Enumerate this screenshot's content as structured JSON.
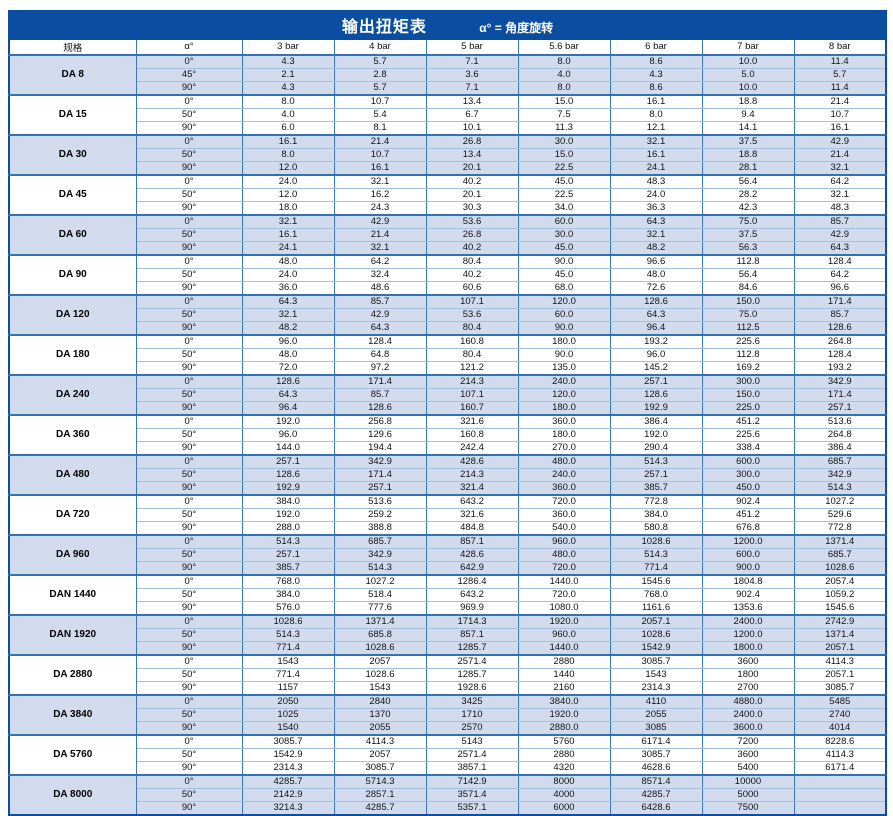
{
  "title": "输出扭矩表",
  "subtitle": "α° = 角度旋转",
  "colors": {
    "header_bg": "#0b4da0",
    "header_text": "#ffffff",
    "group_shade": "#d2dbee",
    "grid_blue": "#3b79bd",
    "row_line": "#a3c0e0",
    "group_separator": "#2e74b5"
  },
  "columns": [
    "规格",
    "α°",
    "3 bar",
    "4 bar",
    "5 bar",
    "5.6 bar",
    "6 bar",
    "7 bar",
    "8 bar"
  ],
  "groups": [
    {
      "model": "DA 8",
      "rows": [
        {
          "angle": "0°",
          "values": [
            "4.3",
            "5.7",
            "7.1",
            "8.0",
            "8.6",
            "10.0",
            "11.4"
          ]
        },
        {
          "angle": "45°",
          "values": [
            "2.1",
            "2.8",
            "3.6",
            "4.0",
            "4.3",
            "5.0",
            "5.7"
          ]
        },
        {
          "angle": "90°",
          "values": [
            "4.3",
            "5.7",
            "7.1",
            "8.0",
            "8.6",
            "10.0",
            "11.4"
          ]
        }
      ]
    },
    {
      "model": "DA 15",
      "rows": [
        {
          "angle": "0°",
          "values": [
            "8.0",
            "10.7",
            "13.4",
            "15.0",
            "16.1",
            "18.8",
            "21.4"
          ]
        },
        {
          "angle": "50°",
          "values": [
            "4.0",
            "5.4",
            "6.7",
            "7.5",
            "8.0",
            "9.4",
            "10.7"
          ]
        },
        {
          "angle": "90°",
          "values": [
            "6.0",
            "8.1",
            "10.1",
            "11.3",
            "12.1",
            "14.1",
            "16.1"
          ]
        }
      ]
    },
    {
      "model": "DA 30",
      "rows": [
        {
          "angle": "0°",
          "values": [
            "16.1",
            "21.4",
            "26.8",
            "30.0",
            "32.1",
            "37.5",
            "42.9"
          ]
        },
        {
          "angle": "50°",
          "values": [
            "8.0",
            "10.7",
            "13.4",
            "15.0",
            "16.1",
            "18.8",
            "21.4"
          ]
        },
        {
          "angle": "90°",
          "values": [
            "12.0",
            "16.1",
            "20.1",
            "22.5",
            "24.1",
            "28.1",
            "32.1"
          ]
        }
      ]
    },
    {
      "model": "DA 45",
      "rows": [
        {
          "angle": "0°",
          "values": [
            "24.0",
            "32.1",
            "40.2",
            "45.0",
            "48.3",
            "56.4",
            "64.2"
          ]
        },
        {
          "angle": "50°",
          "values": [
            "12.0",
            "16.2",
            "20.1",
            "22.5",
            "24.0",
            "28.2",
            "32.1"
          ]
        },
        {
          "angle": "90°",
          "values": [
            "18.0",
            "24.3",
            "30.3",
            "34.0",
            "36.3",
            "42.3",
            "48.3"
          ]
        }
      ]
    },
    {
      "model": "DA 60",
      "rows": [
        {
          "angle": "0°",
          "values": [
            "32.1",
            "42.9",
            "53.6",
            "60.0",
            "64.3",
            "75.0",
            "85.7"
          ]
        },
        {
          "angle": "50°",
          "values": [
            "16.1",
            "21.4",
            "26.8",
            "30.0",
            "32.1",
            "37.5",
            "42.9"
          ]
        },
        {
          "angle": "90°",
          "values": [
            "24.1",
            "32.1",
            "40.2",
            "45.0",
            "48.2",
            "56.3",
            "64.3"
          ]
        }
      ]
    },
    {
      "model": "DA 90",
      "rows": [
        {
          "angle": "0°",
          "values": [
            "48.0",
            "64.2",
            "80.4",
            "90.0",
            "96.6",
            "112.8",
            "128.4"
          ]
        },
        {
          "angle": "50°",
          "values": [
            "24.0",
            "32.4",
            "40.2",
            "45.0",
            "48.0",
            "56.4",
            "64.2"
          ]
        },
        {
          "angle": "90°",
          "values": [
            "36.0",
            "48.6",
            "60.6",
            "68.0",
            "72.6",
            "84.6",
            "96.6"
          ]
        }
      ]
    },
    {
      "model": "DA 120",
      "rows": [
        {
          "angle": "0°",
          "values": [
            "64.3",
            "85.7",
            "107.1",
            "120.0",
            "128.6",
            "150.0",
            "171.4"
          ]
        },
        {
          "angle": "50°",
          "values": [
            "32.1",
            "42.9",
            "53.6",
            "60.0",
            "64.3",
            "75.0",
            "85.7"
          ]
        },
        {
          "angle": "90°",
          "values": [
            "48.2",
            "64.3",
            "80.4",
            "90.0",
            "96.4",
            "112.5",
            "128.6"
          ]
        }
      ]
    },
    {
      "model": "DA 180",
      "rows": [
        {
          "angle": "0°",
          "values": [
            "96.0",
            "128.4",
            "160.8",
            "180.0",
            "193.2",
            "225.6",
            "264.8"
          ]
        },
        {
          "angle": "50°",
          "values": [
            "48.0",
            "64.8",
            "80.4",
            "90.0",
            "96.0",
            "112.8",
            "128.4"
          ]
        },
        {
          "angle": "90°",
          "values": [
            "72.0",
            "97.2",
            "121.2",
            "135.0",
            "145.2",
            "169.2",
            "193.2"
          ]
        }
      ]
    },
    {
      "model": "DA 240",
      "rows": [
        {
          "angle": "0°",
          "values": [
            "128.6",
            "171.4",
            "214.3",
            "240.0",
            "257.1",
            "300.0",
            "342.9"
          ]
        },
        {
          "angle": "50°",
          "values": [
            "64.3",
            "85.7",
            "107.1",
            "120.0",
            "128.6",
            "150.0",
            "171.4"
          ]
        },
        {
          "angle": "90°",
          "values": [
            "96.4",
            "128.6",
            "160.7",
            "180.0",
            "192.9",
            "225.0",
            "257.1"
          ]
        }
      ]
    },
    {
      "model": "DA 360",
      "rows": [
        {
          "angle": "0°",
          "values": [
            "192.0",
            "256.8",
            "321.6",
            "360.0",
            "386.4",
            "451.2",
            "513.6"
          ]
        },
        {
          "angle": "50°",
          "values": [
            "96.0",
            "129.6",
            "160.8",
            "180.0",
            "192.0",
            "225.6",
            "264.8"
          ]
        },
        {
          "angle": "90°",
          "values": [
            "144.0",
            "194.4",
            "242.4",
            "270.0",
            "290.4",
            "338.4",
            "386.4"
          ]
        }
      ]
    },
    {
      "model": "DA 480",
      "rows": [
        {
          "angle": "0°",
          "values": [
            "257.1",
            "342.9",
            "428.6",
            "480.0",
            "514.3",
            "600.0",
            "685.7"
          ]
        },
        {
          "angle": "50°",
          "values": [
            "128.6",
            "171.4",
            "214.3",
            "240.0",
            "257.1",
            "300.0",
            "342.9"
          ]
        },
        {
          "angle": "90°",
          "values": [
            "192.9",
            "257.1",
            "321.4",
            "360.0",
            "385.7",
            "450.0",
            "514.3"
          ]
        }
      ]
    },
    {
      "model": "DA 720",
      "rows": [
        {
          "angle": "0°",
          "values": [
            "384.0",
            "513.6",
            "643.2",
            "720.0",
            "772.8",
            "902.4",
            "1027.2"
          ]
        },
        {
          "angle": "50°",
          "values": [
            "192.0",
            "259.2",
            "321.6",
            "360.0",
            "384.0",
            "451.2",
            "529.6"
          ]
        },
        {
          "angle": "90°",
          "values": [
            "288.0",
            "388.8",
            "484.8",
            "540.0",
            "580.8",
            "676.8",
            "772.8"
          ]
        }
      ]
    },
    {
      "model": "DA 960",
      "rows": [
        {
          "angle": "0°",
          "values": [
            "514.3",
            "685.7",
            "857.1",
            "960.0",
            "1028.6",
            "1200.0",
            "1371.4"
          ]
        },
        {
          "angle": "50°",
          "values": [
            "257.1",
            "342.9",
            "428.6",
            "480.0",
            "514.3",
            "600.0",
            "685.7"
          ]
        },
        {
          "angle": "90°",
          "values": [
            "385.7",
            "514.3",
            "642.9",
            "720.0",
            "771.4",
            "900.0",
            "1028.6"
          ]
        }
      ]
    },
    {
      "model": "DAN 1440",
      "rows": [
        {
          "angle": "0°",
          "values": [
            "768.0",
            "1027.2",
            "1286.4",
            "1440.0",
            "1545.6",
            "1804.8",
            "2057.4"
          ]
        },
        {
          "angle": "50°",
          "values": [
            "384.0",
            "518.4",
            "643.2",
            "720.0",
            "768.0",
            "902.4",
            "1059.2"
          ]
        },
        {
          "angle": "90°",
          "values": [
            "576.0",
            "777.6",
            "969.9",
            "1080.0",
            "1161.6",
            "1353.6",
            "1545.6"
          ]
        }
      ]
    },
    {
      "model": "DAN 1920",
      "rows": [
        {
          "angle": "0°",
          "values": [
            "1028.6",
            "1371.4",
            "1714.3",
            "1920.0",
            "2057.1",
            "2400.0",
            "2742.9"
          ]
        },
        {
          "angle": "50°",
          "values": [
            "514.3",
            "685.8",
            "857.1",
            "960.0",
            "1028.6",
            "1200.0",
            "1371.4"
          ]
        },
        {
          "angle": "90°",
          "values": [
            "771.4",
            "1028.6",
            "1285.7",
            "1440.0",
            "1542.9",
            "1800.0",
            "2057.1"
          ]
        }
      ]
    },
    {
      "model": "DA 2880",
      "rows": [
        {
          "angle": "0°",
          "values": [
            "1543",
            "2057",
            "2571.4",
            "2880",
            "3085.7",
            "3600",
            "4114.3"
          ]
        },
        {
          "angle": "50°",
          "values": [
            "771.4",
            "1028.6",
            "1285.7",
            "1440",
            "1543",
            "1800",
            "2057.1"
          ]
        },
        {
          "angle": "90°",
          "values": [
            "1157",
            "1543",
            "1928.6",
            "2160",
            "2314.3",
            "2700",
            "3085.7"
          ]
        }
      ]
    },
    {
      "model": "DA 3840",
      "rows": [
        {
          "angle": "0°",
          "values": [
            "2050",
            "2840",
            "3425",
            "3840.0",
            "4110",
            "4880.0",
            "5485"
          ]
        },
        {
          "angle": "50°",
          "values": [
            "1025",
            "1370",
            "1710",
            "1920.0",
            "2055",
            "2400.0",
            "2740"
          ]
        },
        {
          "angle": "90°",
          "values": [
            "1540",
            "2055",
            "2570",
            "2880.0",
            "3085",
            "3600.0",
            "4014"
          ]
        }
      ]
    },
    {
      "model": "DA 5760",
      "rows": [
        {
          "angle": "0°",
          "values": [
            "3085.7",
            "4114.3",
            "5143",
            "5760",
            "6171.4",
            "7200",
            "8228.6"
          ]
        },
        {
          "angle": "50°",
          "values": [
            "1542.9",
            "2057",
            "2571.4",
            "2880",
            "3085.7",
            "3600",
            "4114.3"
          ]
        },
        {
          "angle": "90°",
          "values": [
            "2314.3",
            "3085.7",
            "3857.1",
            "4320",
            "4628.6",
            "5400",
            "6171.4"
          ]
        }
      ]
    },
    {
      "model": "DA 8000",
      "rows": [
        {
          "angle": "0°",
          "values": [
            "4285.7",
            "5714.3",
            "7142.9",
            "8000",
            "8571.4",
            "10000",
            ""
          ]
        },
        {
          "angle": "50°",
          "values": [
            "2142.9",
            "2857.1",
            "3571.4",
            "4000",
            "4285.7",
            "5000",
            ""
          ]
        },
        {
          "angle": "90°",
          "values": [
            "3214.3",
            "4285.7",
            "5357.1",
            "6000",
            "6428.6",
            "7500",
            ""
          ]
        }
      ]
    }
  ]
}
